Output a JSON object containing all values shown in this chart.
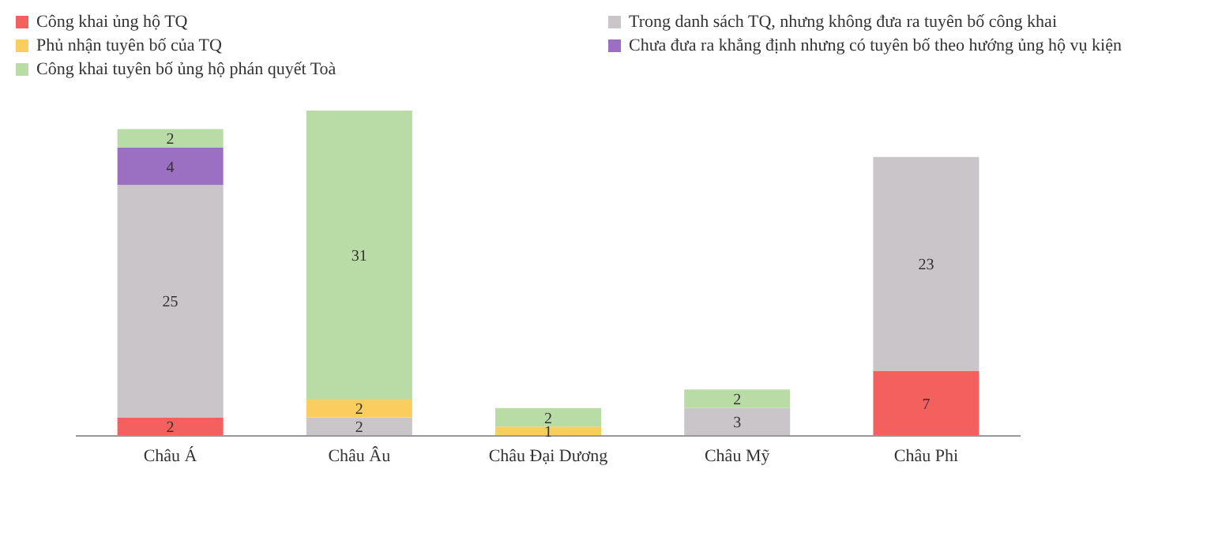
{
  "chart_data": {
    "type": "bar",
    "stacked": true,
    "categories": [
      "Châu Á",
      "Châu Âu",
      "Châu Đại Dương",
      "Châu Mỹ",
      "Châu Phi"
    ],
    "series": [
      {
        "name": "Công khai ủng hộ TQ",
        "color": "#f4605e",
        "values": [
          2,
          null,
          null,
          null,
          7
        ]
      },
      {
        "name": "Trong danh sách TQ, nhưng không đưa ra tuyên bố công khai",
        "color": "#c9c5c9",
        "values": [
          25,
          2,
          null,
          3,
          23
        ]
      },
      {
        "name": "Phủ nhận tuyên bố của TQ",
        "color": "#f9cd5e",
        "values": [
          null,
          2,
          1,
          null,
          null
        ]
      },
      {
        "name": "Chưa đưa ra khẳng định nhưng có tuyên bố theo hướng ủng hộ vụ kiện",
        "color": "#9b6fc2",
        "values": [
          4,
          null,
          null,
          null,
          null
        ]
      },
      {
        "name": "Công khai tuyên bố ủng hộ phán quyết Toà",
        "color": "#b9dca6",
        "values": [
          2,
          31,
          2,
          2,
          null
        ]
      }
    ],
    "ylim": [
      0,
      35
    ],
    "tick_labels": "x",
    "legend": "top left",
    "data_labels": true
  }
}
